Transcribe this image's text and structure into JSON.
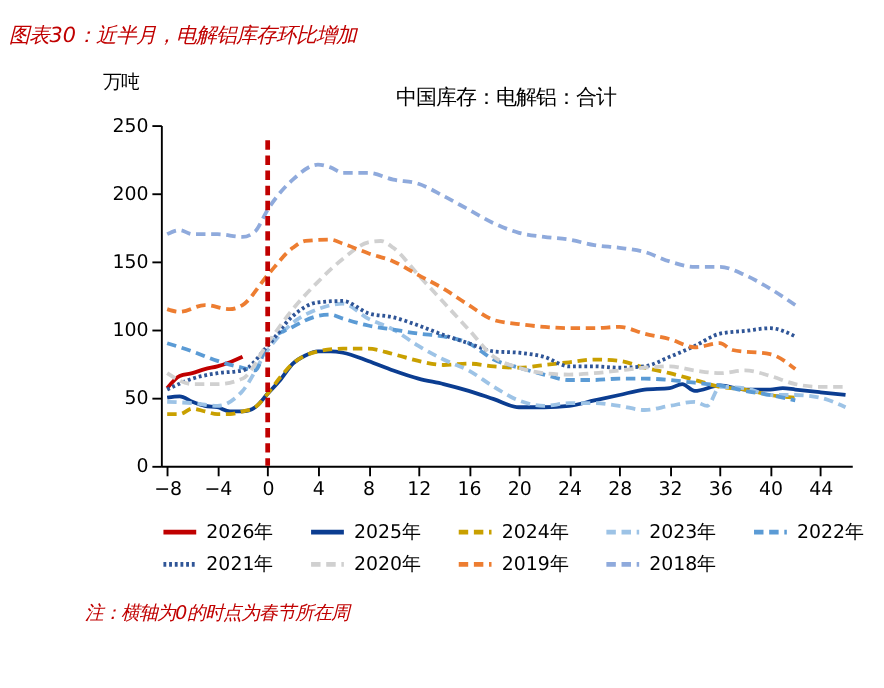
{
  "chart_data": {
    "type": "line",
    "title": "图表30：近半月，电解铝库存环比增加",
    "subtitle": "中国库存：电解铝：合计",
    "ylabel": "万吨",
    "xlim": [
      -8.5,
      46.5
    ],
    "xticks": [
      -8,
      -4,
      0,
      4,
      8,
      12,
      16,
      20,
      24,
      28,
      32,
      36,
      40,
      44
    ],
    "ylim": [
      0,
      250
    ],
    "yticks": [
      0,
      50,
      100,
      150,
      200,
      250
    ],
    "grid": false,
    "legend": "bottom",
    "marker": "none",
    "ref_lines": [
      {
        "axis": "x",
        "value": 0,
        "color": "#c00000",
        "line_style": "dashed"
      }
    ],
    "annotations": [
      "注：横轴为0的时点为春节所在周"
    ],
    "series": [
      {
        "name": "2026年",
        "color": "#c00000",
        "line_style": "solid",
        "x": [
          -8,
          -7,
          -6,
          -5,
          -4,
          -3,
          -2
        ],
        "values": [
          57,
          66,
          68,
          71,
          73,
          76,
          80
        ]
      },
      {
        "name": "2025年",
        "color": "#0b3d91",
        "line_style": "solid",
        "x": [
          -8,
          -7,
          -6,
          -5,
          -4,
          -3,
          -2,
          -1,
          0,
          1,
          2,
          3,
          4,
          5,
          6,
          8,
          10,
          12,
          14,
          16,
          18,
          20,
          22,
          24,
          26,
          28,
          30,
          32,
          33,
          34,
          36,
          38,
          40,
          41,
          42,
          44,
          46
        ],
        "values": [
          50,
          51,
          47,
          44,
          43,
          40,
          40,
          43,
          53,
          63,
          75,
          81,
          84,
          84,
          83,
          77,
          70,
          64,
          60,
          55,
          49,
          43,
          43,
          44,
          48,
          52,
          56,
          57,
          60,
          55,
          59,
          56,
          56,
          57,
          56,
          54,
          52
        ]
      },
      {
        "name": "2024年",
        "color": "#c9a000",
        "line_style": "dashed",
        "x": [
          -8,
          -7,
          -6,
          -5,
          -4,
          -3,
          -2,
          -1,
          0,
          1,
          2,
          3,
          4,
          6,
          8,
          10,
          12,
          14,
          16,
          18,
          20,
          22,
          24,
          26,
          28,
          30,
          32,
          34,
          36,
          38,
          40,
          42
        ],
        "values": [
          38,
          38,
          42,
          40,
          38,
          38,
          40,
          43,
          53,
          65,
          75,
          81,
          84,
          86,
          86,
          82,
          77,
          74,
          75,
          73,
          72,
          74,
          76,
          78,
          77,
          72,
          68,
          63,
          58,
          56,
          52,
          50
        ]
      },
      {
        "name": "2023年",
        "color": "#9dc3e6",
        "line_style": "dashed",
        "x": [
          -8,
          -6,
          -4,
          -2,
          0,
          2,
          4,
          6,
          8,
          10,
          12,
          14,
          16,
          18,
          20,
          22,
          24,
          26,
          28,
          30,
          32,
          34,
          35,
          36,
          38,
          40,
          42,
          44,
          46
        ],
        "values": [
          47,
          46,
          44,
          55,
          85,
          105,
          115,
          119,
          108,
          100,
          88,
          78,
          70,
          58,
          48,
          44,
          46,
          46,
          44,
          41,
          44,
          47,
          44,
          58,
          57,
          52,
          52,
          50,
          43
        ]
      },
      {
        "name": "2022年",
        "color": "#5b9bd5",
        "line_style": "dashed",
        "x": [
          -8,
          -6,
          -4,
          -2,
          -1,
          0,
          2,
          4,
          5,
          6,
          8,
          10,
          12,
          14,
          16,
          18,
          20,
          22,
          24,
          26,
          28,
          30,
          32,
          34,
          36,
          38,
          40,
          42
        ],
        "values": [
          90,
          84,
          77,
          72,
          70,
          90,
          102,
          110,
          111,
          108,
          103,
          100,
          97,
          95,
          90,
          78,
          72,
          67,
          63,
          63,
          64,
          64,
          63,
          61,
          59,
          55,
          52,
          48
        ]
      },
      {
        "name": "2021年",
        "color": "#2f5597",
        "line_style": "dotted",
        "x": [
          -8,
          -6,
          -4,
          -2,
          0,
          2,
          4,
          6,
          8,
          10,
          12,
          14,
          16,
          18,
          20,
          22,
          24,
          26,
          28,
          30,
          32,
          34,
          36,
          38,
          40,
          42
        ],
        "values": [
          56,
          64,
          68,
          70,
          88,
          110,
          120,
          121,
          112,
          109,
          103,
          96,
          90,
          84,
          83,
          80,
          73,
          73,
          72,
          73,
          80,
          88,
          97,
          99,
          101,
          95
        ]
      },
      {
        "name": "2020年",
        "color": "#d0d0d0",
        "line_style": "dashed",
        "x": [
          -8,
          -6,
          -4,
          -2,
          0,
          2,
          4,
          6,
          8,
          9,
          10,
          12,
          14,
          16,
          18,
          20,
          22,
          24,
          26,
          28,
          30,
          32,
          34,
          36,
          38,
          40,
          42,
          44,
          46
        ],
        "values": [
          68,
          60,
          60,
          64,
          90,
          115,
          135,
          152,
          164,
          165,
          160,
          140,
          120,
          100,
          80,
          72,
          68,
          67,
          68,
          70,
          72,
          73,
          70,
          68,
          70,
          66,
          60,
          58,
          58
        ]
      },
      {
        "name": "2019年",
        "color": "#ed7d31",
        "line_style": "dashed",
        "x": [
          -8,
          -7,
          -5,
          -3,
          -2,
          0,
          2,
          3,
          5,
          6,
          8,
          10,
          12,
          14,
          16,
          18,
          20,
          22,
          24,
          26,
          28,
          30,
          32,
          34,
          36,
          37,
          40,
          42
        ],
        "values": [
          115,
          113,
          118,
          115,
          118,
          140,
          160,
          165,
          166,
          163,
          156,
          150,
          140,
          130,
          118,
          107,
          104,
          102,
          101,
          101,
          102,
          97,
          93,
          87,
          90,
          85,
          82,
          71
        ]
      },
      {
        "name": "2018年",
        "color": "#8faadc",
        "line_style": "dashed",
        "x": [
          -8,
          -7,
          -6,
          -4,
          -2,
          -1,
          0,
          2,
          4,
          5,
          6,
          8,
          10,
          12,
          14,
          16,
          18,
          20,
          22,
          24,
          26,
          28,
          30,
          32,
          34,
          36,
          38,
          40,
          42
        ],
        "values": [
          170,
          173,
          170,
          170,
          168,
          172,
          188,
          210,
          221,
          219,
          215,
          215,
          210,
          207,
          198,
          188,
          178,
          171,
          168,
          166,
          162,
          160,
          157,
          150,
          146,
          146,
          140,
          130,
          118
        ]
      }
    ]
  }
}
